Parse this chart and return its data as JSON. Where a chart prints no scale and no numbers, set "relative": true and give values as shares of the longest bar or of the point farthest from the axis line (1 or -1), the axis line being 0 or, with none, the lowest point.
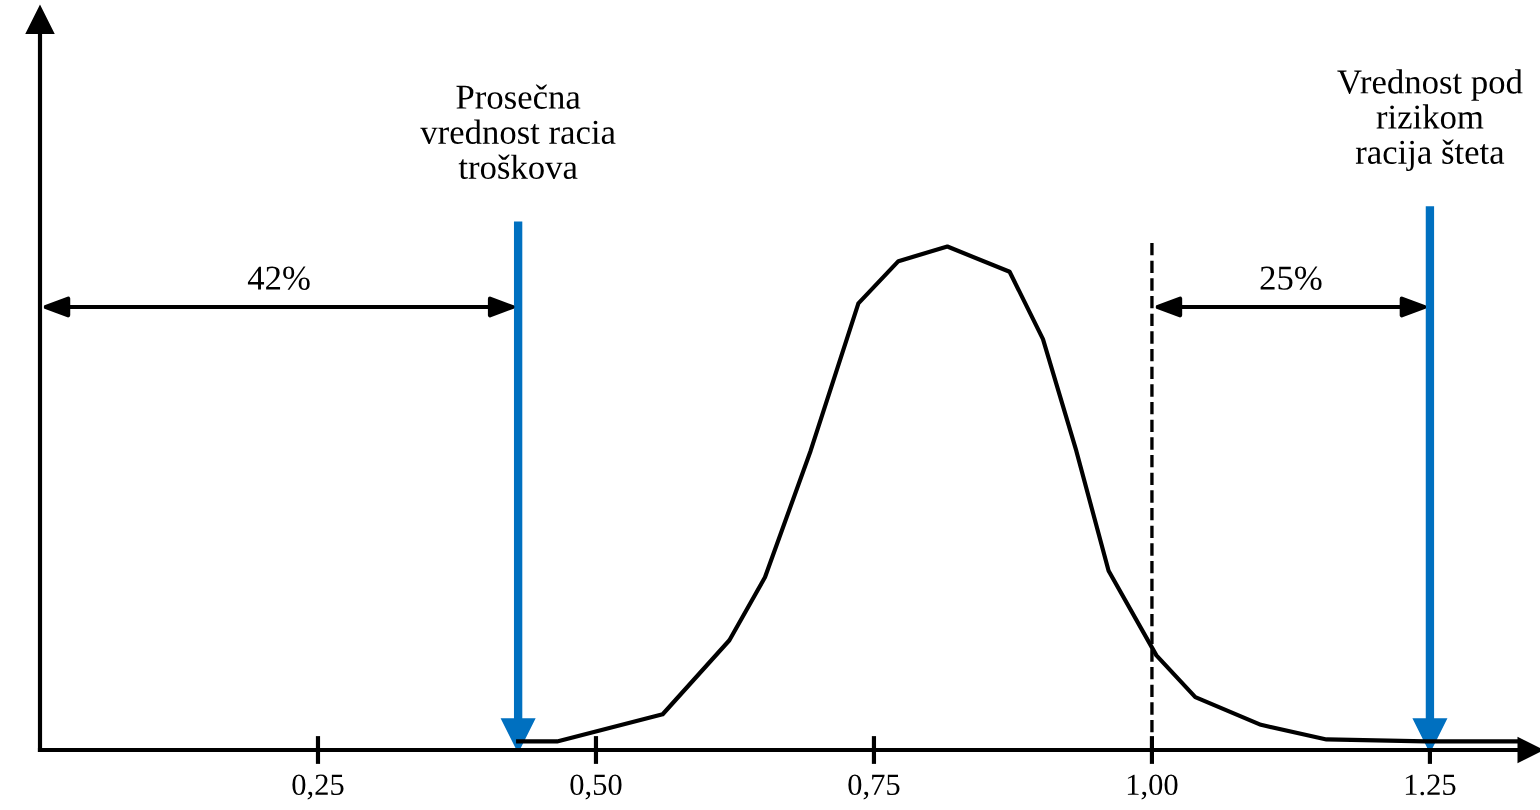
{
  "chart_data": {
    "type": "line",
    "relative": true,
    "x": [
      0.43,
      0.465,
      0.56,
      0.62,
      0.652,
      0.693,
      0.736,
      0.772,
      0.816,
      0.872,
      0.902,
      0.932,
      0.961,
      1.004,
      1.039,
      1.098,
      1.157,
      1.246,
      1.33
    ],
    "values": [
      0.017,
      0.017,
      0.071,
      0.218,
      0.343,
      0.594,
      0.887,
      0.971,
      1.0,
      0.95,
      0.816,
      0.594,
      0.356,
      0.188,
      0.105,
      0.05,
      0.021,
      0.017,
      0.017
    ],
    "color": "#000000",
    "marker": "none",
    "line_style": "solid",
    "grid": false,
    "tick_labels": "x",
    "xlim": [
      0,
      1.34
    ],
    "xticks": [
      {
        "value": 0.25,
        "label": "0,25"
      },
      {
        "value": 0.5,
        "label": "0,50"
      },
      {
        "value": 0.75,
        "label": "0,75"
      },
      {
        "value": 1.0,
        "label": "1,00"
      },
      {
        "value": 1.25,
        "label": "1.25"
      }
    ],
    "ref_lines": [
      {
        "axis": "x",
        "value": 0.43,
        "label": "Prosečna\nvrednost racia\ntroškova",
        "color": "#0070c0",
        "line_style": "solid"
      },
      {
        "axis": "x",
        "value": 1.0,
        "label": null,
        "color": "#000000",
        "line_style": "dashed"
      },
      {
        "axis": "x",
        "value": 1.25,
        "label": "Vrednost pod\nrizikom\nracija šteta",
        "color": "#0070c0",
        "line_style": "solid"
      }
    ],
    "annotations": [
      "42%",
      "25%"
    ]
  }
}
